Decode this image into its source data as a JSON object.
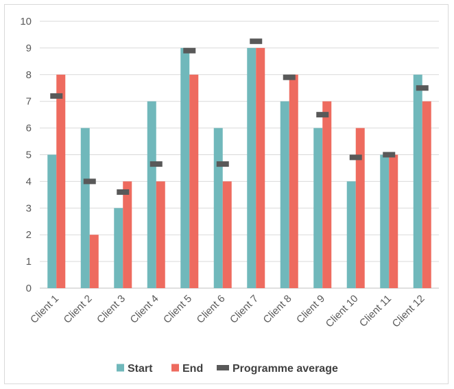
{
  "chart_data": {
    "type": "bar",
    "title": "",
    "xlabel": "",
    "ylabel": "",
    "ylim": [
      0,
      10
    ],
    "yticks": [
      0,
      1,
      2,
      3,
      4,
      5,
      6,
      7,
      8,
      9,
      10
    ],
    "grid": true,
    "legend_position": "bottom",
    "categories": [
      "Client 1",
      "Client 2",
      "Client 3",
      "Client 4",
      "Client 5",
      "Client 6",
      "Client 7",
      "Client 8",
      "Client 9",
      "Client 10",
      "Client 11",
      "Client 12"
    ],
    "series": [
      {
        "name": "Start",
        "type": "bar",
        "color": "#70b8bb",
        "values": [
          5,
          6,
          3,
          7,
          9,
          6,
          9,
          7,
          6,
          4,
          5,
          8
        ]
      },
      {
        "name": "End",
        "type": "bar",
        "color": "#ee6b5f",
        "values": [
          8,
          2,
          4,
          4,
          8,
          4,
          9,
          8,
          7,
          6,
          5,
          7
        ]
      },
      {
        "name": "Programme average",
        "type": "marker",
        "color": "#595959",
        "values": [
          7.2,
          4.0,
          3.6,
          4.65,
          8.9,
          4.65,
          9.25,
          7.9,
          6.5,
          4.9,
          5.0,
          7.5
        ]
      }
    ]
  }
}
